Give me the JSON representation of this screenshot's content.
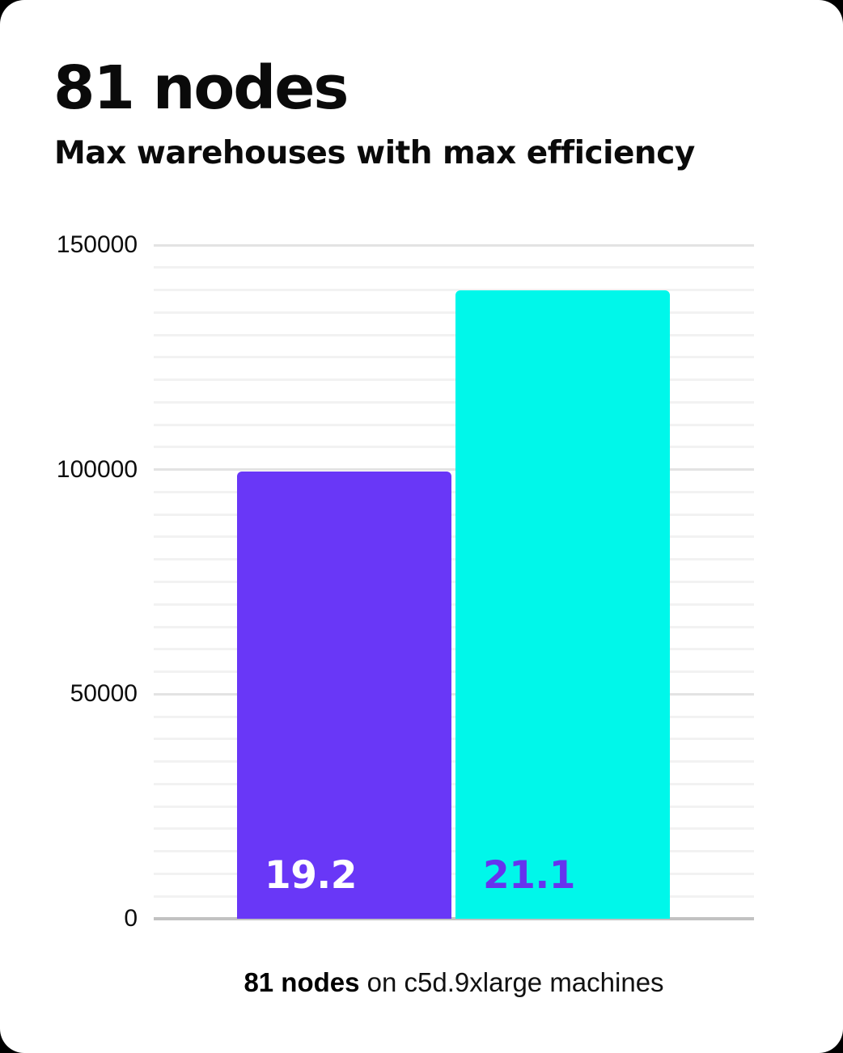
{
  "page": {
    "title": "81 nodes",
    "subtitle": "Max warehouses with max efficiency",
    "caption_bold": "81 nodes",
    "caption_rest": " on c5d.9xlarge machines"
  },
  "colors": {
    "card_background": "#ffffff",
    "outer_background": "#000000",
    "bar1_fill": "#6937f7",
    "bar2_fill": "#00f7ea",
    "bar1_label_color": "#ffffff",
    "bar2_label_color": "#6633ee",
    "grid_minor": "#f2f2f2",
    "grid_major": "#e3e3e3",
    "axis_baseline": "#c2c2c2",
    "text": "#0a0a0a"
  },
  "chart_data": {
    "type": "bar",
    "title": "81 nodes",
    "subtitle": "Max warehouses with max efficiency",
    "categories": [
      "",
      ""
    ],
    "values": [
      99500,
      140000
    ],
    "bar_value_labels": [
      "19.2",
      "21.1"
    ],
    "xlabel": "",
    "ylabel": "",
    "ylim": [
      0,
      150000
    ],
    "yticks": [
      0,
      50000,
      100000,
      150000
    ],
    "ytick_labels": [
      "0",
      "50000",
      "100000",
      "150000"
    ],
    "grid": "horizontal minor gridlines every 5000, major every 50000, grid on",
    "legend": "none",
    "caption": "81 nodes on c5d.9xlarge machines"
  }
}
